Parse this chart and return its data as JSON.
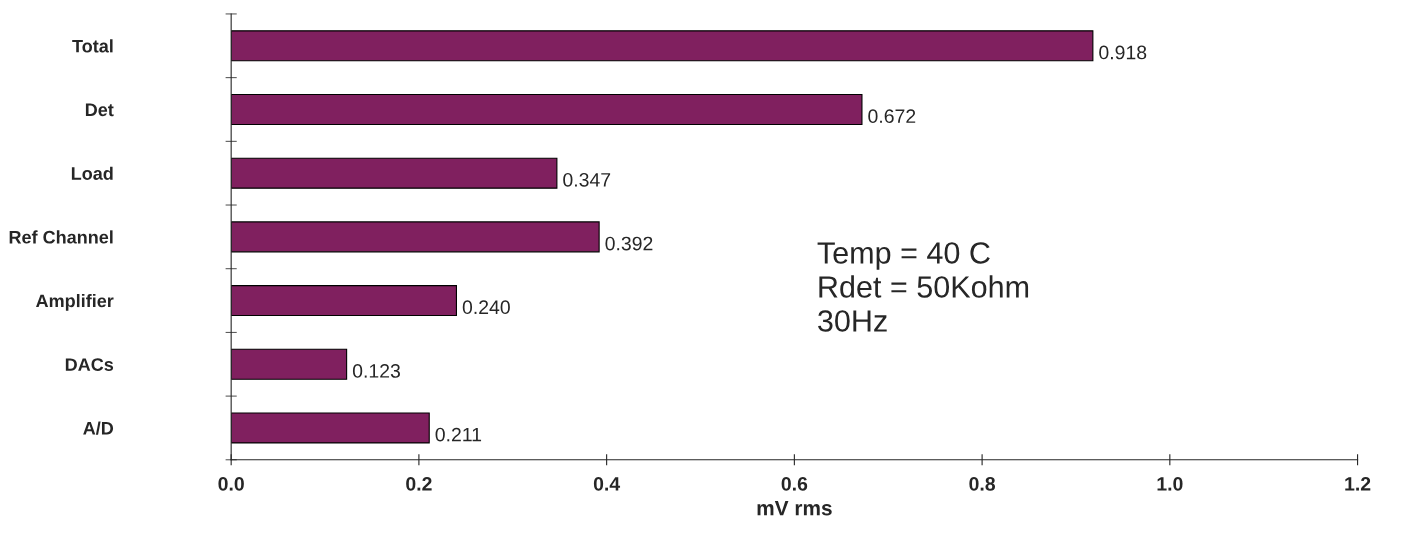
{
  "chart_data": {
    "type": "bar",
    "orientation": "horizontal",
    "xlabel": "mV rms",
    "categories": [
      "Total",
      "Det",
      "Load",
      "Ref Channel",
      "Amplifier",
      "DACs",
      "A/D"
    ],
    "values": [
      0.918,
      0.672,
      0.347,
      0.392,
      0.24,
      0.123,
      0.211
    ],
    "value_labels": [
      "0.918",
      "0.672",
      "0.347",
      "0.392",
      "0.240",
      "0.123",
      "0.211"
    ],
    "color": "#80205f",
    "xlim": [
      0,
      1.2
    ],
    "xticks": [
      {
        "value": 0,
        "label": "0.0"
      },
      0.2,
      0.4,
      0.6,
      0.8,
      {
        "value": 1,
        "label": "1.0"
      },
      1.2
    ],
    "annotations": [
      "Temp = 40 C\nRdet = 50Kohm\n30Hz"
    ],
    "grid": false,
    "legend": false
  }
}
